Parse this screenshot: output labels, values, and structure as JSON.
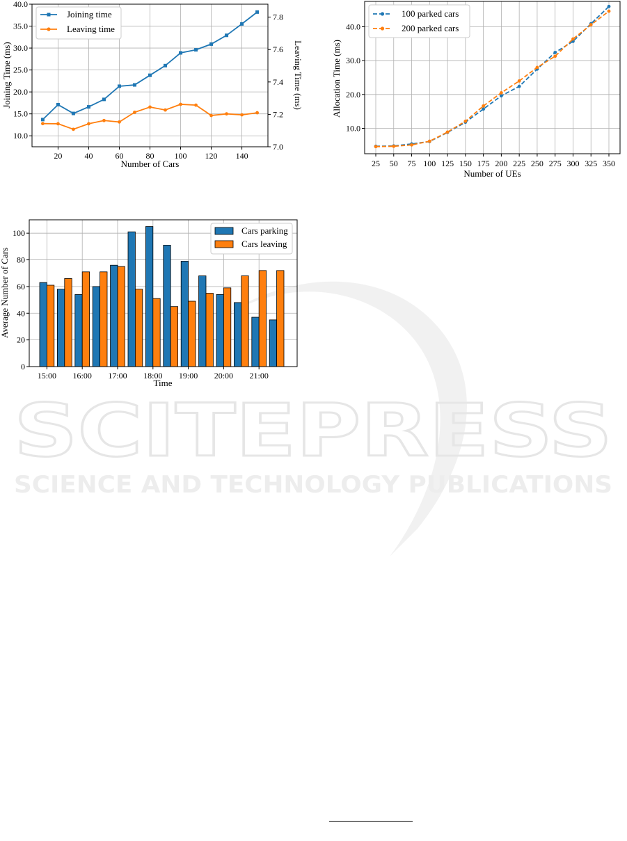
{
  "watermark": {
    "title": "SCITEPRESS",
    "subtitle": "SCIENCE AND TECHNOLOGY PUBLICATIONS"
  },
  "chart_data": [
    {
      "type": "line",
      "id": "joining-leaving",
      "title": "",
      "xlabel": "Number of Cars",
      "ylabel": "Joining Time (ms)",
      "y2label": "Leaving Time (ms)",
      "xlim": [
        3,
        157
      ],
      "ylim": [
        7.5,
        40.0
      ],
      "y2lim": [
        7.0,
        7.88
      ],
      "xticks": [
        20,
        40,
        60,
        80,
        100,
        120,
        140
      ],
      "yticks": [
        10.0,
        15.0,
        20.0,
        25.0,
        30.0,
        35.0,
        40.0
      ],
      "ytick_labels": [
        "10.0",
        "15.0",
        "20.0",
        "25.0",
        "30.0",
        "35.0",
        "40.0"
      ],
      "y2ticks": [
        7.0,
        7.2,
        7.4,
        7.6,
        7.8
      ],
      "y2tick_labels": [
        "7.0",
        "7.2",
        "7.4",
        "7.6",
        "7.8"
      ],
      "grid": true,
      "legend": "top-left",
      "x": [
        10,
        20,
        30,
        40,
        50,
        60,
        70,
        80,
        90,
        100,
        110,
        120,
        130,
        140,
        150
      ],
      "series": [
        {
          "name": "Joining time",
          "axis": "left",
          "marker": "square",
          "color": "#1f77b4",
          "values": [
            13.7,
            17.1,
            15.1,
            16.6,
            18.3,
            21.3,
            21.6,
            23.8,
            26.0,
            28.9,
            29.6,
            30.9,
            32.9,
            35.5,
            38.2
          ]
        },
        {
          "name": "Leaving time",
          "axis": "right",
          "marker": "circle",
          "color": "#ff7f0e",
          "values": [
            7.143,
            7.142,
            7.108,
            7.142,
            7.162,
            7.153,
            7.213,
            7.245,
            7.227,
            7.262,
            7.257,
            7.193,
            7.203,
            7.197,
            7.21
          ]
        }
      ]
    },
    {
      "type": "line",
      "id": "allocation-time",
      "title": "",
      "xlabel": "Number of UEs",
      "ylabel": "Allocation Time (ms)",
      "categories": [
        "25",
        "50",
        "75",
        "100",
        "125",
        "150",
        "175",
        "200",
        "225",
        "250",
        "275",
        "300",
        "325",
        "350"
      ],
      "ylim": [
        2.5,
        47.5
      ],
      "yticks": [
        10.0,
        20.0,
        30.0,
        40.0
      ],
      "ytick_labels": [
        "10.0",
        "20.0",
        "30.0",
        "40.0"
      ],
      "grid": true,
      "legend": "top-left",
      "series": [
        {
          "name": "100 parked cars",
          "marker": "circle",
          "color": "#1f77b4",
          "values": [
            4.7,
            4.8,
            5.4,
            6.1,
            8.8,
            11.8,
            15.7,
            19.6,
            22.4,
            27.5,
            32.4,
            35.7,
            40.9,
            46.0
          ]
        },
        {
          "name": "200 parked cars",
          "marker": "circle",
          "color": "#ff7f0e",
          "values": [
            4.6,
            4.7,
            5.1,
            6.2,
            8.9,
            12.1,
            16.6,
            20.5,
            24.0,
            28.0,
            31.3,
            36.4,
            40.6,
            44.6
          ]
        }
      ]
    },
    {
      "type": "bar",
      "id": "parking-leaving",
      "title": "",
      "xlabel": "Time",
      "ylabel": "Average Number of Cars",
      "ylim": [
        0,
        110
      ],
      "yticks": [
        0,
        20,
        40,
        60,
        80,
        100
      ],
      "xtick_labels": [
        "15:00",
        "16:00",
        "17:00",
        "18:00",
        "19:00",
        "20:00",
        "21:00"
      ],
      "xtick_group_index": [
        0,
        2,
        4,
        6,
        8,
        10,
        12
      ],
      "grid": true,
      "legend": "top-right",
      "series": [
        {
          "name": "Cars parking",
          "color": "#1f77b4",
          "values": [
            63,
            58,
            54,
            60,
            76,
            101,
            105,
            91,
            79,
            68,
            54,
            48,
            37,
            35
          ]
        },
        {
          "name": "Cars leaving",
          "color": "#ff7f0e",
          "values": [
            61,
            66,
            71,
            71,
            75,
            58,
            51,
            45,
            49,
            55,
            59,
            68,
            72,
            72
          ]
        }
      ]
    }
  ]
}
